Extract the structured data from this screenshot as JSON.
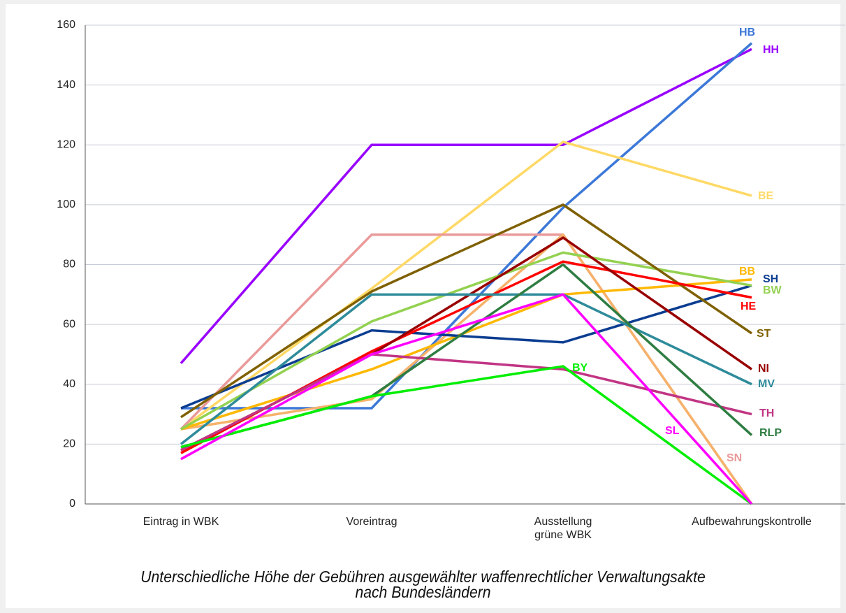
{
  "chart_data": {
    "type": "line",
    "title": [
      "Unterschiedliche Höhe der Gebühren ausgewählter waffenrechtlicher Verwaltungsakte",
      "nach Bundesländern"
    ],
    "categories": [
      "Eintrag in WBK",
      "Voreintrag",
      "Ausstellung\ngrüne WBK",
      "Aufbewahrungskontrolle"
    ],
    "ylim": [
      0,
      160
    ],
    "yticks": [
      0,
      20,
      40,
      60,
      80,
      100,
      120,
      140,
      160
    ],
    "grid": true,
    "series": [
      {
        "name": "HH",
        "color": "#9900ff",
        "values": [
          47,
          120,
          120,
          152
        ]
      },
      {
        "name": "HB",
        "color": "#3c78d8",
        "values": [
          32,
          32,
          99,
          154
        ]
      },
      {
        "name": "BE",
        "color": "#ffd966",
        "values": [
          25,
          72,
          121,
          103
        ]
      },
      {
        "name": "SN",
        "color": "#ea9999",
        "values": [
          25,
          90,
          90,
          0
        ]
      },
      {
        "color": "#f6b26b",
        "values": [
          25,
          35,
          90,
          0
        ]
      },
      {
        "name": "BB",
        "color": "#ffb800",
        "values": [
          25,
          45,
          70,
          75
        ]
      },
      {
        "name": "SH",
        "color": "#0b3d91",
        "values": [
          32,
          58,
          54,
          73
        ]
      },
      {
        "name": "BW",
        "color": "#93d150",
        "values": [
          25,
          61,
          84,
          73
        ]
      },
      {
        "name": "ST",
        "color": "#7f6000",
        "values": [
          29,
          71,
          100,
          57
        ]
      },
      {
        "name": "HE",
        "color": "#ff0000",
        "values": [
          17,
          51,
          81,
          69
        ]
      },
      {
        "name": "NI",
        "color": "#990000",
        "values": [
          18,
          50,
          89,
          45
        ]
      },
      {
        "name": "MV",
        "color": "#2e8b9a",
        "values": [
          20,
          70,
          70,
          40
        ]
      },
      {
        "name": "TH",
        "color": "#c13584",
        "values": [
          18,
          50,
          45,
          30
        ]
      },
      {
        "name": "RLP",
        "color": "#2e7d42",
        "values": [
          19,
          36,
          80,
          23
        ]
      },
      {
        "name": "BY",
        "color": "#00ee00",
        "values": [
          19,
          36,
          46,
          0
        ]
      },
      {
        "name": "SL",
        "color": "#ff00ff",
        "values": [
          15,
          50,
          70,
          0
        ]
      }
    ]
  }
}
